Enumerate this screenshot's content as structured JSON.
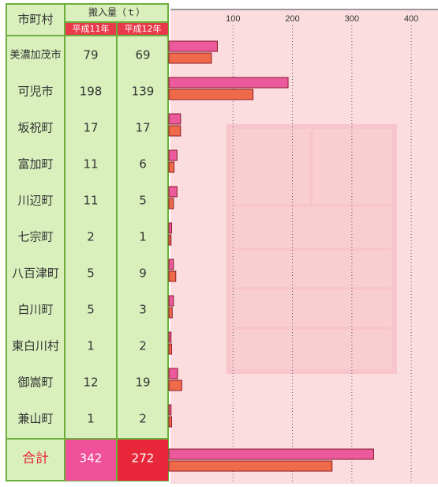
{
  "chart_data": {
    "type": "bar",
    "header": "搬入量（ｔ）",
    "category_header": "市町村",
    "categories": [
      "美濃加茂市",
      "可児市",
      "坂祝町",
      "富加町",
      "川辺町",
      "七宗町",
      "八百津町",
      "白川町",
      "東白川村",
      "御嵩町",
      "兼山町"
    ],
    "series": [
      {
        "name": "平成11年",
        "color": "#ea5a9c",
        "values": [
          79,
          198,
          17,
          11,
          11,
          2,
          5,
          5,
          1,
          12,
          1
        ]
      },
      {
        "name": "平成12年",
        "color": "#ee6a48",
        "values": [
          69,
          139,
          17,
          6,
          5,
          1,
          9,
          3,
          2,
          19,
          2
        ]
      }
    ],
    "total_label": "合計",
    "totals": [
      342,
      272
    ],
    "xlim": [
      0,
      445
    ],
    "xticks": [
      100,
      200,
      300,
      400
    ]
  }
}
